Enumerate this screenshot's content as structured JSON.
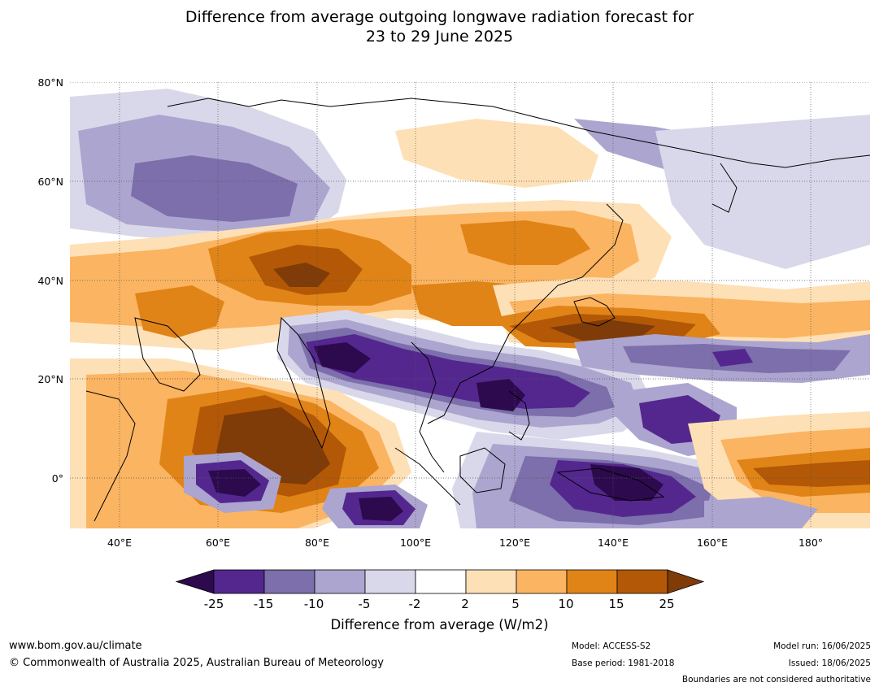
{
  "title": {
    "line1": "Difference from average outgoing longwave radiation forecast for",
    "line2": "23 to 29 June 2025"
  },
  "map": {
    "lat_labels": [
      "80°N",
      "60°N",
      "40°N",
      "20°N",
      "0°"
    ],
    "lon_labels": [
      "40°E",
      "60°E",
      "80°E",
      "100°E",
      "120°E",
      "140°E",
      "160°E",
      "180°"
    ],
    "lat_range": [
      -10,
      80
    ],
    "lon_range": [
      30,
      192
    ]
  },
  "colorbar": {
    "ticks": [
      "-25",
      "-15",
      "-10",
      "-5",
      "-2",
      "2",
      "5",
      "10",
      "15",
      "25"
    ],
    "colors": [
      "#2d0a4e",
      "#54278f",
      "#7c6fab",
      "#aca5cf",
      "#d9d8ea",
      "#ffffff",
      "#fee0b6",
      "#fbb461",
      "#e08418",
      "#b35806",
      "#7f3b08"
    ],
    "label": "Difference from average (W/m2)"
  },
  "footer": {
    "website": "www.bom.gov.au/climate",
    "copyright": "© Commonwealth of Australia 2025, Australian Bureau of Meteorology",
    "model": "Model: ACCESS-S2",
    "base_period": "Base period: 1981-2018",
    "model_run": "Model run: 16/06/2025",
    "issued": "Issued: 18/06/2025",
    "disclaimer": "Boundaries are not considered authoritative"
  }
}
